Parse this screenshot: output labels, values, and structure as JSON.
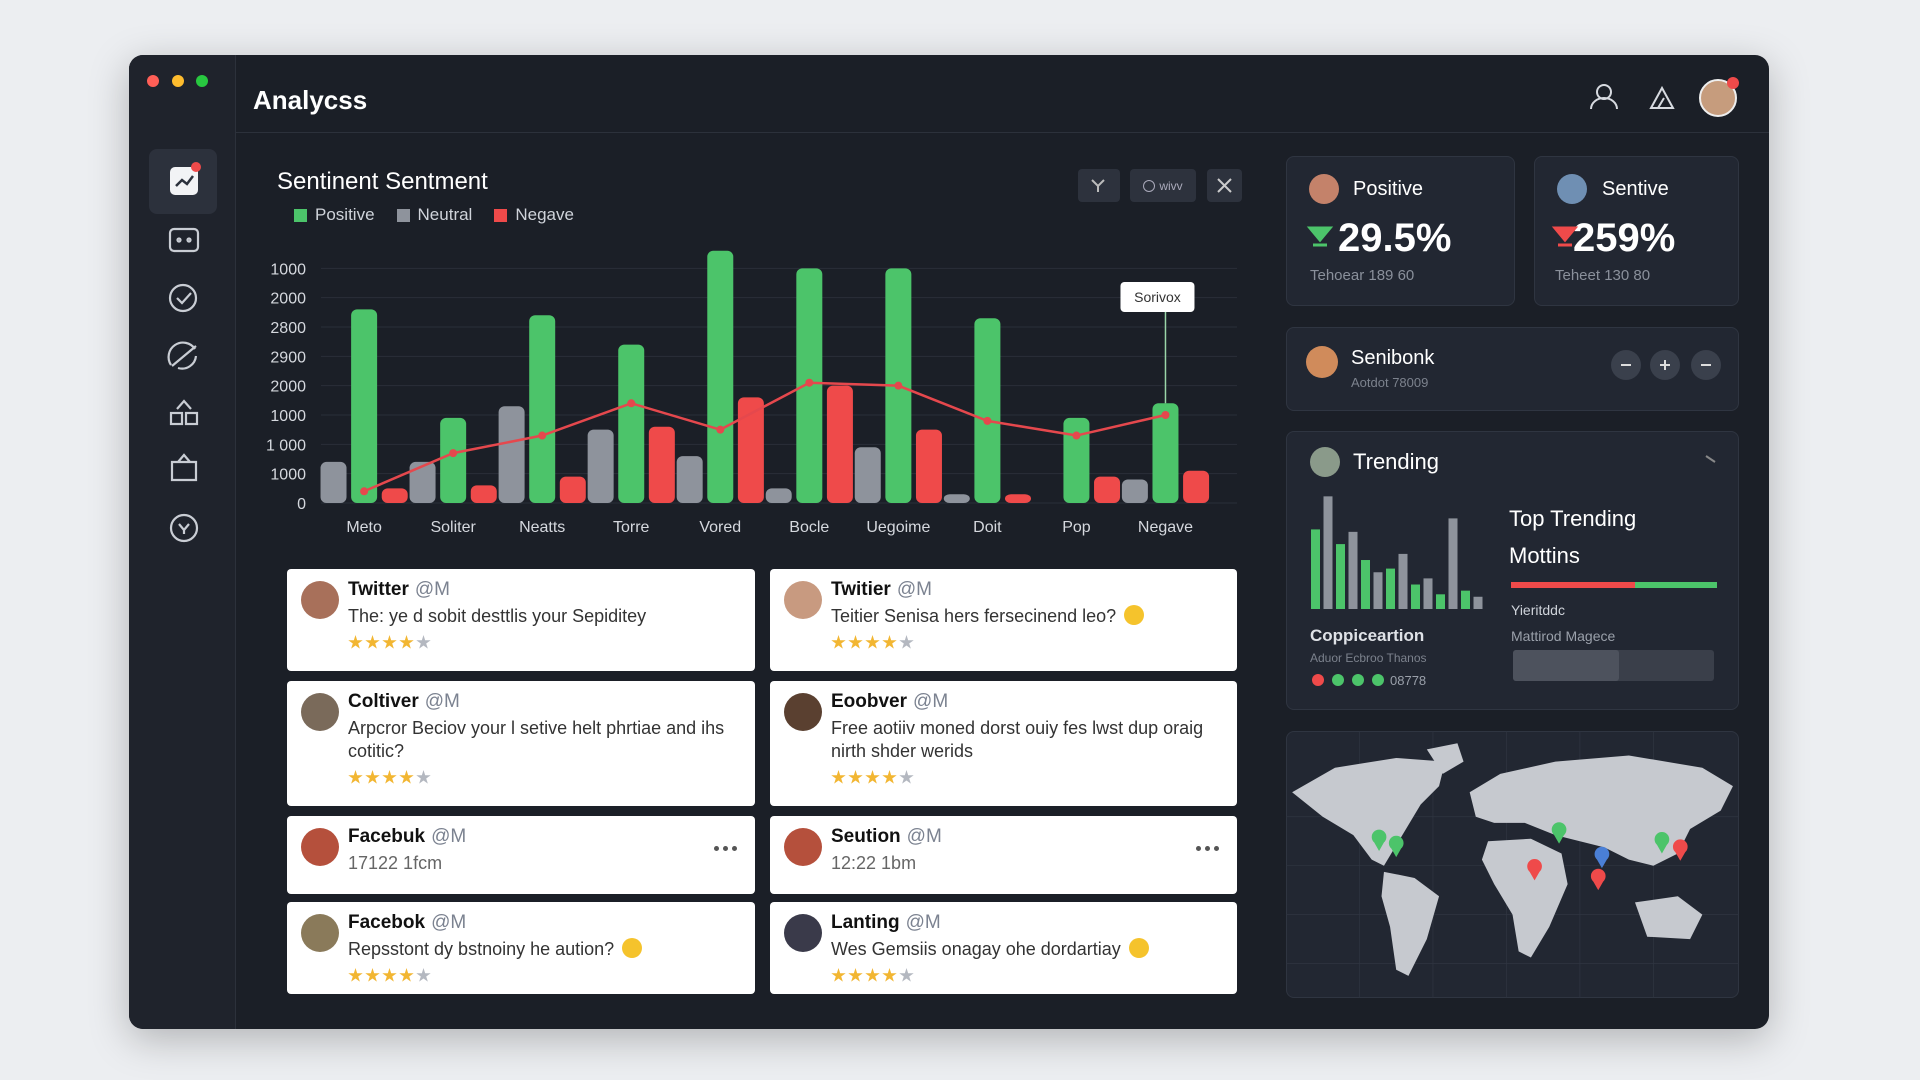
{
  "header": {
    "title": "Analycss"
  },
  "toolbar": {
    "view": "wivv"
  },
  "chart_data": {
    "type": "bar",
    "title": "Sentinent Sentment",
    "categories": [
      "Meto",
      "Soliter",
      "Neatts",
      "Torre",
      "Vored",
      "Bocle",
      "Uegoime",
      "Doit",
      "Pop",
      "Negave"
    ],
    "series": [
      {
        "name": "Positive",
        "color": "#4cc46a",
        "values": [
          6.6,
          2.9,
          6.4,
          5.4,
          8.6,
          8.0,
          8.0,
          6.3,
          2.9,
          3.4
        ]
      },
      {
        "name": "Neutral",
        "color": "#8e939c",
        "values": [
          1.4,
          1.4,
          3.3,
          2.5,
          1.6,
          0.5,
          1.9,
          0.3,
          null,
          0.8
        ]
      },
      {
        "name": "Negave",
        "color": "#ef4a4a",
        "values": [
          0.5,
          0.6,
          0.9,
          2.6,
          3.6,
          4.0,
          2.5,
          0.3,
          0.9,
          1.1
        ]
      }
    ],
    "line": {
      "color": "#e5484d",
      "values": [
        0.4,
        1.7,
        2.3,
        3.4,
        2.5,
        4.1,
        4.0,
        2.8,
        2.3,
        3.0
      ]
    },
    "ylim": [
      0,
      9
    ],
    "yticks": [
      0,
      {
        "value": 1,
        "label": "1000"
      },
      {
        "value": 2,
        "label": "1 000"
      },
      {
        "value": 3,
        "label": "1000"
      },
      {
        "value": 4,
        "label": "2000"
      },
      {
        "value": 5,
        "label": "2900"
      },
      {
        "value": 6,
        "label": "2800"
      },
      {
        "value": 7,
        "label": "2000"
      },
      {
        "value": 8,
        "label": "1000"
      }
    ],
    "grid": true,
    "annotation": "Sorivox"
  },
  "stats": [
    {
      "label": "Positive",
      "value": "29.5%",
      "note": "Tehoear 189 60"
    },
    {
      "label": "Sentive",
      "value": "259%",
      "note": "Teheet 130 80"
    }
  ],
  "profile": {
    "name": "Senibonk",
    "sub": "Aotdot 78009"
  },
  "trending": {
    "title": "Trending",
    "heading": "Top Trending Mottins",
    "meter_label": "Yieritddc",
    "meter_sub": "Mattirod Magece",
    "caption": "Coppiceartion",
    "caption_sub": "Aduor Ecbroo Thanos",
    "count": "08778",
    "bars": [
      65,
      92,
      53,
      63,
      40,
      30,
      33,
      45,
      20,
      25,
      12,
      74,
      15,
      10
    ]
  },
  "posts": [
    {
      "name": "Twitter",
      "handle": "@M",
      "text": "The: ye d sobit desttlis your Sepiditey",
      "rating": 4,
      "emoji": false
    },
    {
      "name": "Twitier",
      "handle": "@M",
      "text": "Teitier Senisa hers fersecinend leo?",
      "rating": 4,
      "emoji": true
    },
    {
      "name": "Coltiver",
      "handle": "@M",
      "text": "Arpcror Beciov your l setive helt phrtiae and ihs cotitic?",
      "rating": 4,
      "emoji": false
    },
    {
      "name": "Eoobver",
      "handle": "@M",
      "text": "Free aotiiv moned dorst ouiy fes lwst dup oraig nirth shder werids",
      "rating": 4,
      "emoji": false
    },
    {
      "name": "Facebuk",
      "handle": "@M",
      "text": "17122 1fcm",
      "rating": 0,
      "emoji": false
    },
    {
      "name": "Seution",
      "handle": "@M",
      "text": "12:22 1bm",
      "rating": 0,
      "emoji": false
    },
    {
      "name": "Facebok",
      "handle": "@M",
      "text": "Repsstont dy bstnoiny he aution?",
      "rating": 4,
      "emoji": true
    },
    {
      "name": "Lanting",
      "handle": "@M",
      "text": "Wes Gemsiis onagay ohe dordartiay",
      "rating": 4,
      "emoji": true
    }
  ]
}
